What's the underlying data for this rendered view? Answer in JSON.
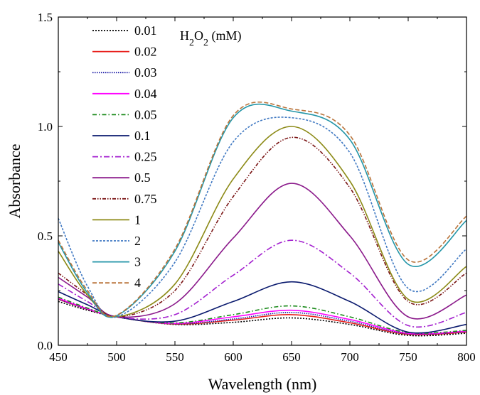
{
  "chart_data": {
    "type": "line",
    "title": "",
    "xlabel": "Wavelength (nm)",
    "ylabel": "Absorbance",
    "xlim": [
      450,
      800
    ],
    "ylim": [
      0.0,
      1.5
    ],
    "xticks": [
      450,
      500,
      550,
      600,
      650,
      700,
      750,
      800
    ],
    "yticks": [
      0.0,
      0.5,
      1.0,
      1.5
    ],
    "ytick_labels": [
      "0.0",
      "0.5",
      "1.0",
      "1.5"
    ],
    "grid": false,
    "legend_position": "top-left",
    "legend_title": {
      "base": "H",
      "sub1": "2",
      "mid": "O",
      "sub2": "2",
      "tail": " (mM)"
    },
    "series": [
      {
        "name": "0.01",
        "color": "#000000",
        "dash": "2,2",
        "values": [
          [
            450,
            0.2
          ],
          [
            475,
            0.16
          ],
          [
            500,
            0.13
          ],
          [
            550,
            0.095
          ],
          [
            600,
            0.105
          ],
          [
            650,
            0.125
          ],
          [
            700,
            0.095
          ],
          [
            750,
            0.045
          ],
          [
            800,
            0.055
          ]
        ]
      },
      {
        "name": "0.02",
        "color": "#e8211d",
        "dash": "",
        "values": [
          [
            450,
            0.21
          ],
          [
            475,
            0.165
          ],
          [
            500,
            0.13
          ],
          [
            550,
            0.097
          ],
          [
            600,
            0.115
          ],
          [
            650,
            0.14
          ],
          [
            700,
            0.103
          ],
          [
            750,
            0.05
          ],
          [
            800,
            0.06
          ]
        ]
      },
      {
        "name": "0.03",
        "color": "#1a1aa6",
        "dash": "1.5,1.5",
        "values": [
          [
            450,
            0.21
          ],
          [
            475,
            0.165
          ],
          [
            500,
            0.13
          ],
          [
            550,
            0.098
          ],
          [
            600,
            0.12
          ],
          [
            650,
            0.15
          ],
          [
            700,
            0.11
          ],
          [
            750,
            0.052
          ],
          [
            800,
            0.062
          ]
        ]
      },
      {
        "name": "0.04",
        "color": "#ff00ff",
        "dash": "",
        "values": [
          [
            450,
            0.215
          ],
          [
            475,
            0.167
          ],
          [
            500,
            0.13
          ],
          [
            550,
            0.1
          ],
          [
            600,
            0.13
          ],
          [
            650,
            0.16
          ],
          [
            700,
            0.118
          ],
          [
            750,
            0.055
          ],
          [
            800,
            0.065
          ]
        ]
      },
      {
        "name": "0.05",
        "color": "#1a8a1a",
        "dash": "6,3,1.5,3",
        "values": [
          [
            450,
            0.22
          ],
          [
            475,
            0.17
          ],
          [
            500,
            0.13
          ],
          [
            550,
            0.102
          ],
          [
            600,
            0.14
          ],
          [
            650,
            0.18
          ],
          [
            700,
            0.13
          ],
          [
            750,
            0.058
          ],
          [
            800,
            0.068
          ]
        ]
      },
      {
        "name": "0.1",
        "color": "#0a1a6e",
        "dash": "",
        "values": [
          [
            450,
            0.245
          ],
          [
            475,
            0.185
          ],
          [
            500,
            0.13
          ],
          [
            550,
            0.11
          ],
          [
            600,
            0.2
          ],
          [
            650,
            0.29
          ],
          [
            700,
            0.2
          ],
          [
            750,
            0.06
          ],
          [
            800,
            0.095
          ]
        ]
      },
      {
        "name": "0.25",
        "color": "#a31fcf",
        "dash": "8,3,2,3",
        "values": [
          [
            450,
            0.28
          ],
          [
            475,
            0.2
          ],
          [
            500,
            0.13
          ],
          [
            550,
            0.14
          ],
          [
            600,
            0.32
          ],
          [
            650,
            0.48
          ],
          [
            700,
            0.33
          ],
          [
            750,
            0.09
          ],
          [
            800,
            0.15
          ]
        ]
      },
      {
        "name": "0.5",
        "color": "#8b1a8b",
        "dash": "",
        "values": [
          [
            450,
            0.31
          ],
          [
            475,
            0.22
          ],
          [
            500,
            0.13
          ],
          [
            550,
            0.19
          ],
          [
            600,
            0.49
          ],
          [
            650,
            0.74
          ],
          [
            700,
            0.5
          ],
          [
            750,
            0.13
          ],
          [
            800,
            0.23
          ]
        ]
      },
      {
        "name": "0.75",
        "color": "#7a1414",
        "dash": "5,2,1.5,2,1.5,2",
        "values": [
          [
            450,
            0.33
          ],
          [
            475,
            0.23
          ],
          [
            500,
            0.13
          ],
          [
            550,
            0.25
          ],
          [
            600,
            0.68
          ],
          [
            650,
            0.95
          ],
          [
            700,
            0.72
          ],
          [
            750,
            0.2
          ],
          [
            800,
            0.33
          ]
        ]
      },
      {
        "name": "1",
        "color": "#8c8a16",
        "dash": "",
        "values": [
          [
            450,
            0.43
          ],
          [
            475,
            0.23
          ],
          [
            500,
            0.13
          ],
          [
            550,
            0.28
          ],
          [
            600,
            0.76
          ],
          [
            650,
            1.0
          ],
          [
            700,
            0.75
          ],
          [
            750,
            0.21
          ],
          [
            800,
            0.36
          ]
        ]
      },
      {
        "name": "2",
        "color": "#3f78c2",
        "dash": "3,2",
        "values": [
          [
            450,
            0.58
          ],
          [
            475,
            0.27
          ],
          [
            500,
            0.13
          ],
          [
            550,
            0.38
          ],
          [
            600,
            0.93
          ],
          [
            650,
            1.04
          ],
          [
            700,
            0.88
          ],
          [
            750,
            0.26
          ],
          [
            800,
            0.44
          ]
        ]
      },
      {
        "name": "3",
        "color": "#2496a8",
        "dash": "",
        "values": [
          [
            450,
            0.47
          ],
          [
            475,
            0.24
          ],
          [
            500,
            0.135
          ],
          [
            550,
            0.43
          ],
          [
            600,
            1.04
          ],
          [
            650,
            1.07
          ],
          [
            700,
            0.94
          ],
          [
            750,
            0.37
          ],
          [
            800,
            0.57
          ]
        ]
      },
      {
        "name": "4",
        "color": "#b9733a",
        "dash": "6,3",
        "values": [
          [
            450,
            0.48
          ],
          [
            475,
            0.25
          ],
          [
            500,
            0.137
          ],
          [
            550,
            0.44
          ],
          [
            600,
            1.05
          ],
          [
            650,
            1.08
          ],
          [
            700,
            0.96
          ],
          [
            750,
            0.39
          ],
          [
            800,
            0.59
          ]
        ]
      }
    ]
  }
}
